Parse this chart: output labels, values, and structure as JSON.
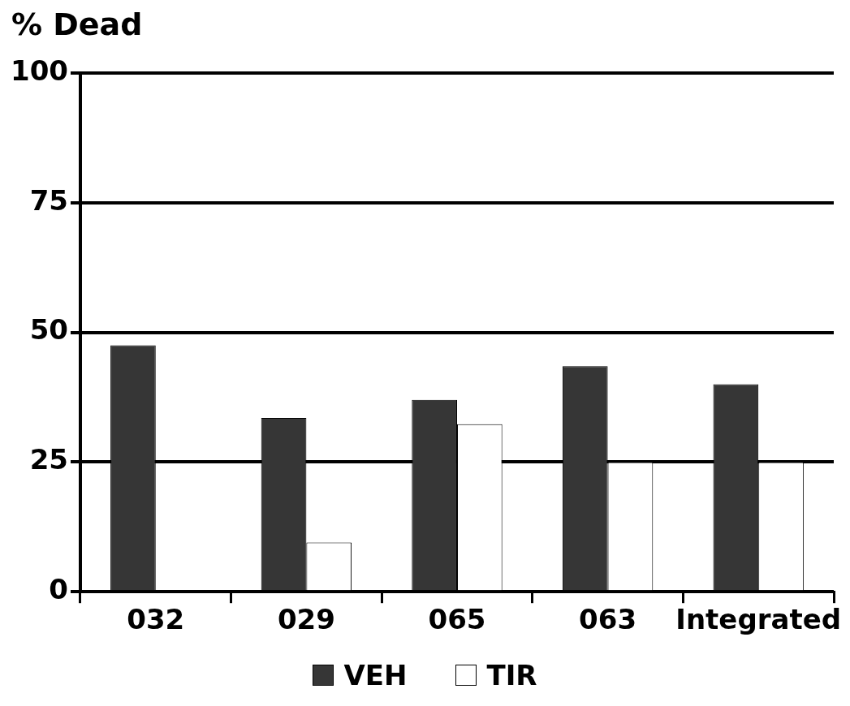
{
  "chart_data": {
    "type": "bar",
    "ylabel": "% Dead",
    "categories": [
      "032",
      "029",
      "065",
      "063",
      "Integrated"
    ],
    "series": [
      {
        "name": "VEH",
        "color": "#363636",
        "values": [
          47.5,
          33.5,
          37,
          43.5,
          40
        ]
      },
      {
        "name": "TIR",
        "color": "#ffffff",
        "values": [
          0,
          9.5,
          32.3,
          25,
          25
        ]
      }
    ],
    "ylim": [
      0,
      100
    ],
    "yticks": [
      0,
      25,
      50,
      75,
      100
    ],
    "grid": "y",
    "legend": "bottom"
  }
}
